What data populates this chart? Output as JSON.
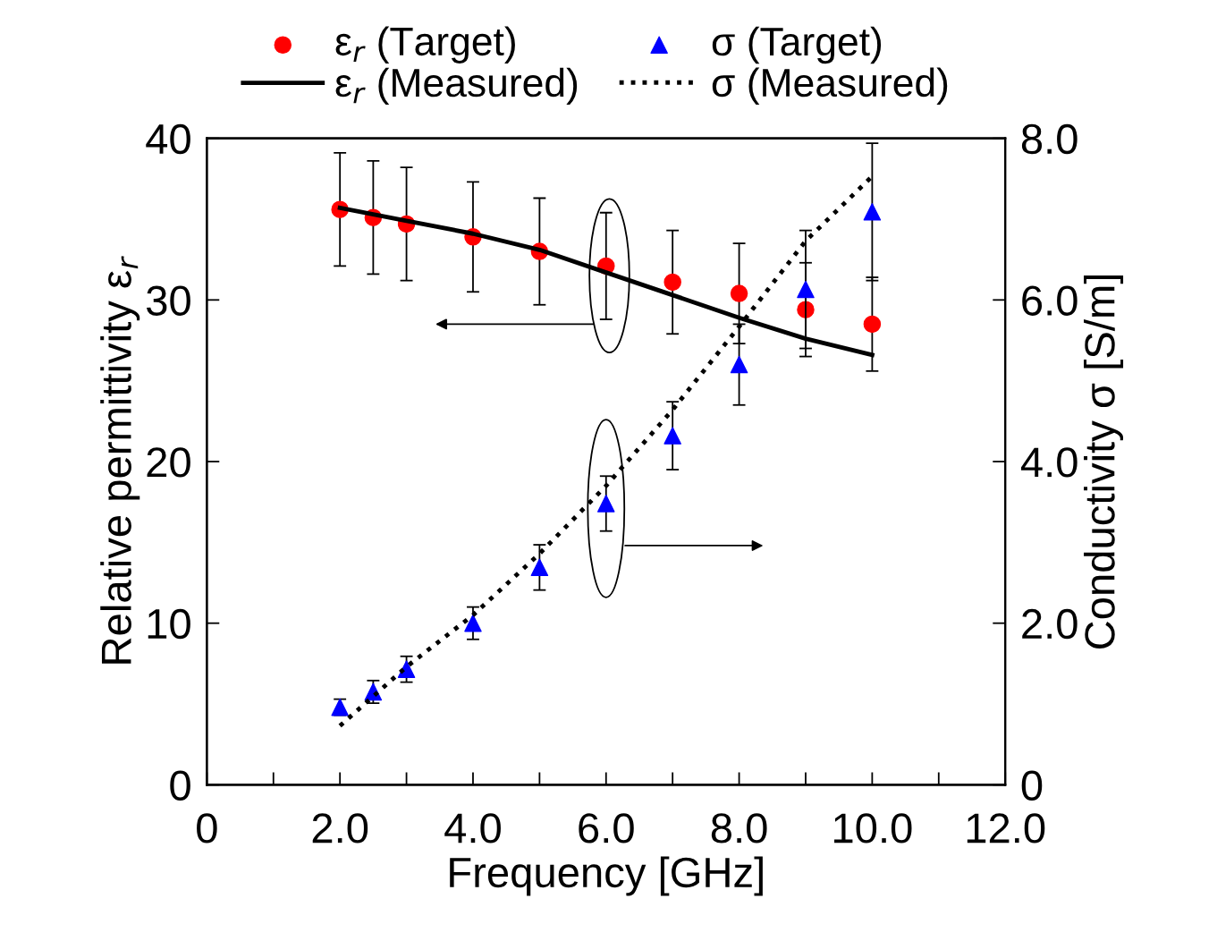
{
  "chart_data": {
    "type": "scatter",
    "xlabel": "Frequency [GHz]",
    "ylabel": "Relative permittivity ε$_{r}$",
    "y2label": "Conductivity σ [S/m]",
    "xlim": [
      0,
      12
    ],
    "xticks": [
      0,
      {
        "value": 1,
        "label": null
      },
      {
        "value": 2,
        "label": "2.0"
      },
      {
        "value": 3,
        "label": null
      },
      {
        "value": 4,
        "label": "4.0"
      },
      {
        "value": 5,
        "label": null
      },
      {
        "value": 6,
        "label": "6.0"
      },
      {
        "value": 7,
        "label": null
      },
      {
        "value": 8,
        "label": "8.0"
      },
      {
        "value": 9,
        "label": null
      },
      {
        "value": 10,
        "label": "10.0"
      },
      {
        "value": 11,
        "label": null
      },
      {
        "value": 12,
        "label": "12.0"
      }
    ],
    "ylim": [
      0,
      40
    ],
    "yticks": [
      0,
      10,
      20,
      30,
      40
    ],
    "y2lim": [
      0,
      8
    ],
    "y2ticks": [
      0,
      {
        "value": 2,
        "label": "2.0"
      },
      {
        "value": 4,
        "label": "4.0"
      },
      {
        "value": 6,
        "label": "6.0"
      },
      {
        "value": 8,
        "label": "8.0"
      }
    ],
    "grid": false,
    "legend": "top",
    "series": [
      {
        "name": "ε$_{r}$ (Target)",
        "marker": "circle",
        "color": "#ff0000",
        "x": [
          2,
          2.5,
          3,
          4,
          5,
          6,
          7,
          8,
          9,
          10
        ],
        "values": [
          35.6,
          35.1,
          34.7,
          33.9,
          33.0,
          32.1,
          31.1,
          30.4,
          29.4,
          28.5
        ],
        "errors": [
          3.5,
          3.5,
          3.5,
          3.4,
          3.3,
          3.3,
          3.2,
          3.1,
          2.9,
          2.9
        ]
      },
      {
        "name": "σ (Target)",
        "marker": "triangle",
        "color": "#0000ff",
        "axis": "y2",
        "x": [
          2,
          2.5,
          3,
          4,
          5,
          6,
          7,
          8,
          9,
          10
        ],
        "values": [
          0.96,
          1.15,
          1.43,
          2.0,
          2.69,
          3.48,
          4.32,
          5.2,
          6.13,
          7.09
        ],
        "errors": [
          0.1,
          0.14,
          0.16,
          0.2,
          0.28,
          0.34,
          0.42,
          0.5,
          0.73,
          0.85
        ]
      },
      {
        "name": "ε$_{r}$ (Measured)",
        "type": "line",
        "line_style": "solid",
        "marker": "none",
        "color": "#000000",
        "x": [
          2,
          3,
          4,
          5,
          6,
          7,
          8,
          9,
          10
        ],
        "values": [
          35.7,
          34.9,
          34.1,
          33.1,
          31.7,
          30.3,
          28.9,
          27.6,
          26.6
        ]
      },
      {
        "name": "σ (Measured)",
        "type": "line",
        "line_style": "dotted",
        "marker": "none",
        "color": "#000000",
        "axis": "y2",
        "x": [
          2,
          3,
          4,
          5,
          6,
          7,
          8,
          9,
          10
        ],
        "values": [
          0.73,
          1.46,
          2.1,
          2.86,
          3.7,
          4.64,
          5.67,
          6.73,
          7.53
        ]
      }
    ]
  }
}
